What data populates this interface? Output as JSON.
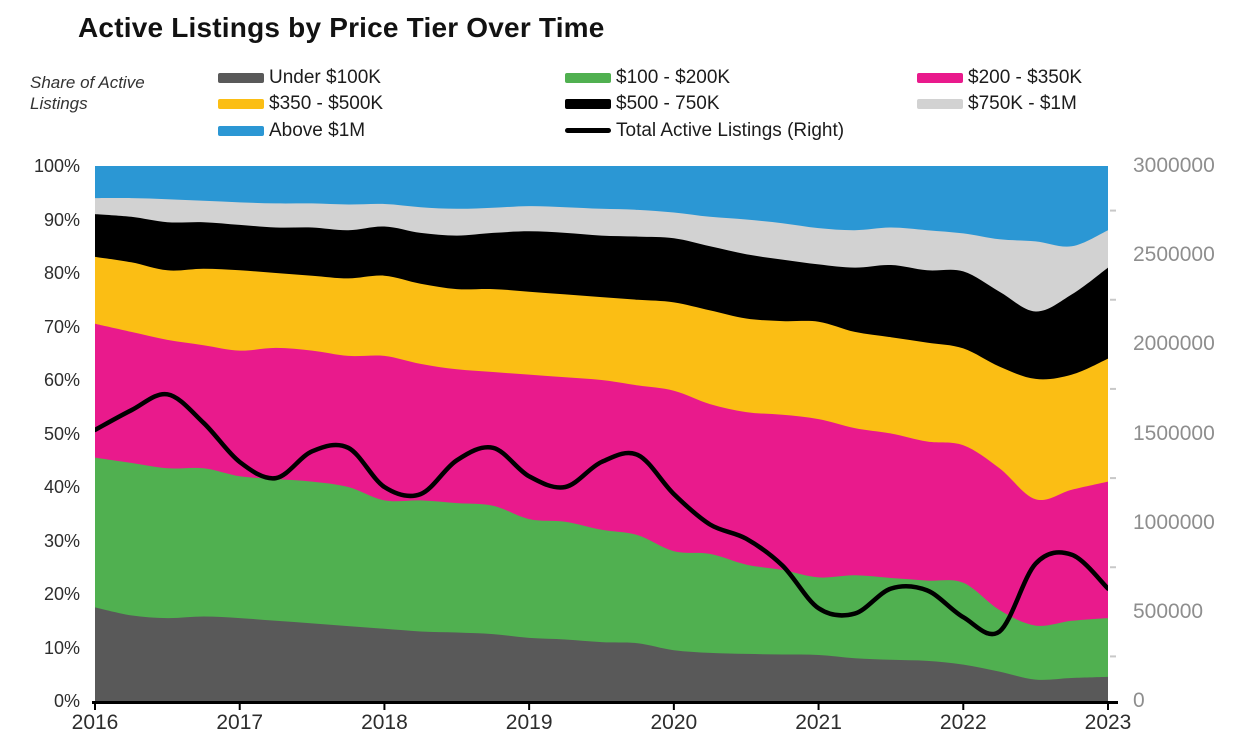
{
  "title": "Active Listings by Price Tier Over Time",
  "y_left_caption": "Share of Active Listings",
  "legend": {
    "items": [
      {
        "label": "Under $100K",
        "kind": "box",
        "color": "#595959"
      },
      {
        "label": "$100 - $200K",
        "kind": "box",
        "color": "#50B050"
      },
      {
        "label": "$200 - $350K",
        "kind": "box",
        "color": "#E91A8C"
      },
      {
        "label": "$350 - $500K",
        "kind": "box",
        "color": "#FBBE14"
      },
      {
        "label": "$500 - 750K",
        "kind": "box",
        "color": "#000000"
      },
      {
        "label": "$750K - $1M",
        "kind": "box",
        "color": "#D2D2D2"
      },
      {
        "label": "Above $1M",
        "kind": "box",
        "color": "#2B97D4"
      },
      {
        "label": "Total Active Listings (Right)",
        "kind": "line",
        "color": "#000000"
      }
    ]
  },
  "chart_data": {
    "type": "area",
    "subtype": "stacked-100-percent-with-line",
    "title": "Active Listings by Price Tier Over Time",
    "xlabel": "",
    "ylabel_left": "Share of Active Listings",
    "ylabel_right": "",
    "grid": false,
    "legend_position": "top",
    "x_start": 2016,
    "x_end": 2023,
    "x_step": 0.25,
    "x_tick_labels": [
      "2016",
      "2017",
      "2018",
      "2019",
      "2020",
      "2021",
      "2022",
      "2023"
    ],
    "y_left_range": [
      0,
      100
    ],
    "y_left_ticks": [
      {
        "label": "0%",
        "value": 0
      },
      {
        "label": "10%",
        "value": 10
      },
      {
        "label": "20%",
        "value": 20
      },
      {
        "label": "30%",
        "value": 30
      },
      {
        "label": "40%",
        "value": 40
      },
      {
        "label": "50%",
        "value": 50
      },
      {
        "label": "60%",
        "value": 60
      },
      {
        "label": "70%",
        "value": 70
      },
      {
        "label": "80%",
        "value": 80
      },
      {
        "label": "90%",
        "value": 90
      },
      {
        "label": "100%",
        "value": 100
      }
    ],
    "y_right_range": [
      0,
      3000000
    ],
    "y_right_ticks": [
      {
        "label": "0",
        "value": 0
      },
      {
        "label": "500000",
        "value": 500000
      },
      {
        "label": "1000000",
        "value": 1000000
      },
      {
        "label": "1500000",
        "value": 1500000
      },
      {
        "label": "2000000",
        "value": 2000000
      },
      {
        "label": "2500000",
        "value": 2500000
      },
      {
        "label": "3000000",
        "value": 3000000
      }
    ],
    "y_right_minor_tick_values": [
      250000,
      750000,
      1250000,
      1750000,
      2250000,
      2750000
    ],
    "series": [
      {
        "id": "under-100k",
        "name": "Under $100K",
        "color": "#595959",
        "values": [
          17.5,
          16,
          15.5,
          15.8,
          15.5,
          15,
          14.5,
          14,
          13.5,
          13,
          12.8,
          12.5,
          11.8,
          11.5,
          11,
          10.8,
          9.5,
          9,
          8.8,
          8.7,
          8.6,
          8,
          7.7,
          7.5,
          6.8,
          5.5,
          4,
          4.3,
          4.5
        ]
      },
      {
        "id": "100k-200k",
        "name": "$100 - $200K",
        "color": "#50B050",
        "values": [
          28,
          28.5,
          28,
          27.7,
          26.5,
          26.5,
          26.5,
          26,
          24,
          24.5,
          24.2,
          24,
          22.2,
          22,
          21,
          20.2,
          18.5,
          18.5,
          16.7,
          15.8,
          14.5,
          15.5,
          15.3,
          15,
          15.3,
          11.5,
          10.1,
          10.7,
          11
        ]
      },
      {
        "id": "200k-350k",
        "name": "$200 - $350K",
        "color": "#E91A8C",
        "values": [
          25,
          24.5,
          24,
          23,
          23.5,
          24.5,
          24.5,
          24.5,
          27,
          25.5,
          25,
          25,
          27,
          27,
          28,
          28,
          30,
          28,
          28.5,
          29,
          29.6,
          27.5,
          27,
          26,
          25.7,
          26.5,
          23.6,
          24.5,
          25.5
        ]
      },
      {
        "id": "350k-500k",
        "name": "$350 - $500K",
        "color": "#FBBE14",
        "values": [
          12.5,
          13,
          13,
          14.3,
          15,
          14,
          14,
          14.5,
          15,
          15,
          15,
          15.5,
          15.5,
          15.5,
          15.5,
          16,
          16.5,
          17.5,
          17.5,
          17.5,
          18.2,
          18,
          18,
          18.5,
          18.1,
          19,
          22.5,
          21.5,
          23
        ]
      },
      {
        "id": "500k-750k",
        "name": "$500 - 750K",
        "color": "#000000",
        "values": [
          8,
          8.5,
          9,
          8.7,
          8.5,
          8.5,
          9,
          9,
          9.2,
          9.5,
          10,
          10.5,
          11.3,
          11.5,
          11.5,
          11.8,
          12,
          12,
          12,
          11.5,
          10.7,
          12,
          13.5,
          13.5,
          14.4,
          14,
          12.6,
          15,
          17
        ]
      },
      {
        "id": "750k-1m",
        "name": "$750K - $1M",
        "color": "#D2D2D2",
        "values": [
          3,
          3.5,
          4.3,
          4,
          4.2,
          4.5,
          4.5,
          4.8,
          4.2,
          4.8,
          5,
          4.7,
          4.7,
          4.8,
          5,
          5,
          4.8,
          5.5,
          6.5,
          6.8,
          6.8,
          7,
          7,
          7.5,
          7.1,
          9.8,
          13.1,
          9,
          7
        ]
      },
      {
        "id": "above-1m",
        "name": "Above $1M",
        "color": "#2B97D4",
        "values": [
          6,
          6,
          6.2,
          6.5,
          6.8,
          7,
          7,
          7.2,
          7.1,
          7.7,
          8,
          7.8,
          7.5,
          7.7,
          8,
          8.2,
          8.7,
          9.5,
          10,
          10.7,
          11.6,
          12,
          11.5,
          12,
          12.6,
          13.7,
          14.1,
          15,
          12
        ]
      }
    ],
    "line_series": {
      "id": "total-active-listings",
      "name": "Total Active Listings (Right)",
      "color": "#000000",
      "axis": "right",
      "values": [
        1520000,
        1630000,
        1720000,
        1560000,
        1340000,
        1250000,
        1400000,
        1420000,
        1200000,
        1160000,
        1350000,
        1420000,
        1260000,
        1200000,
        1340000,
        1380000,
        1160000,
        990000,
        910000,
        760000,
        520000,
        490000,
        630000,
        620000,
        470000,
        390000,
        770000,
        820000,
        630000
      ]
    }
  }
}
